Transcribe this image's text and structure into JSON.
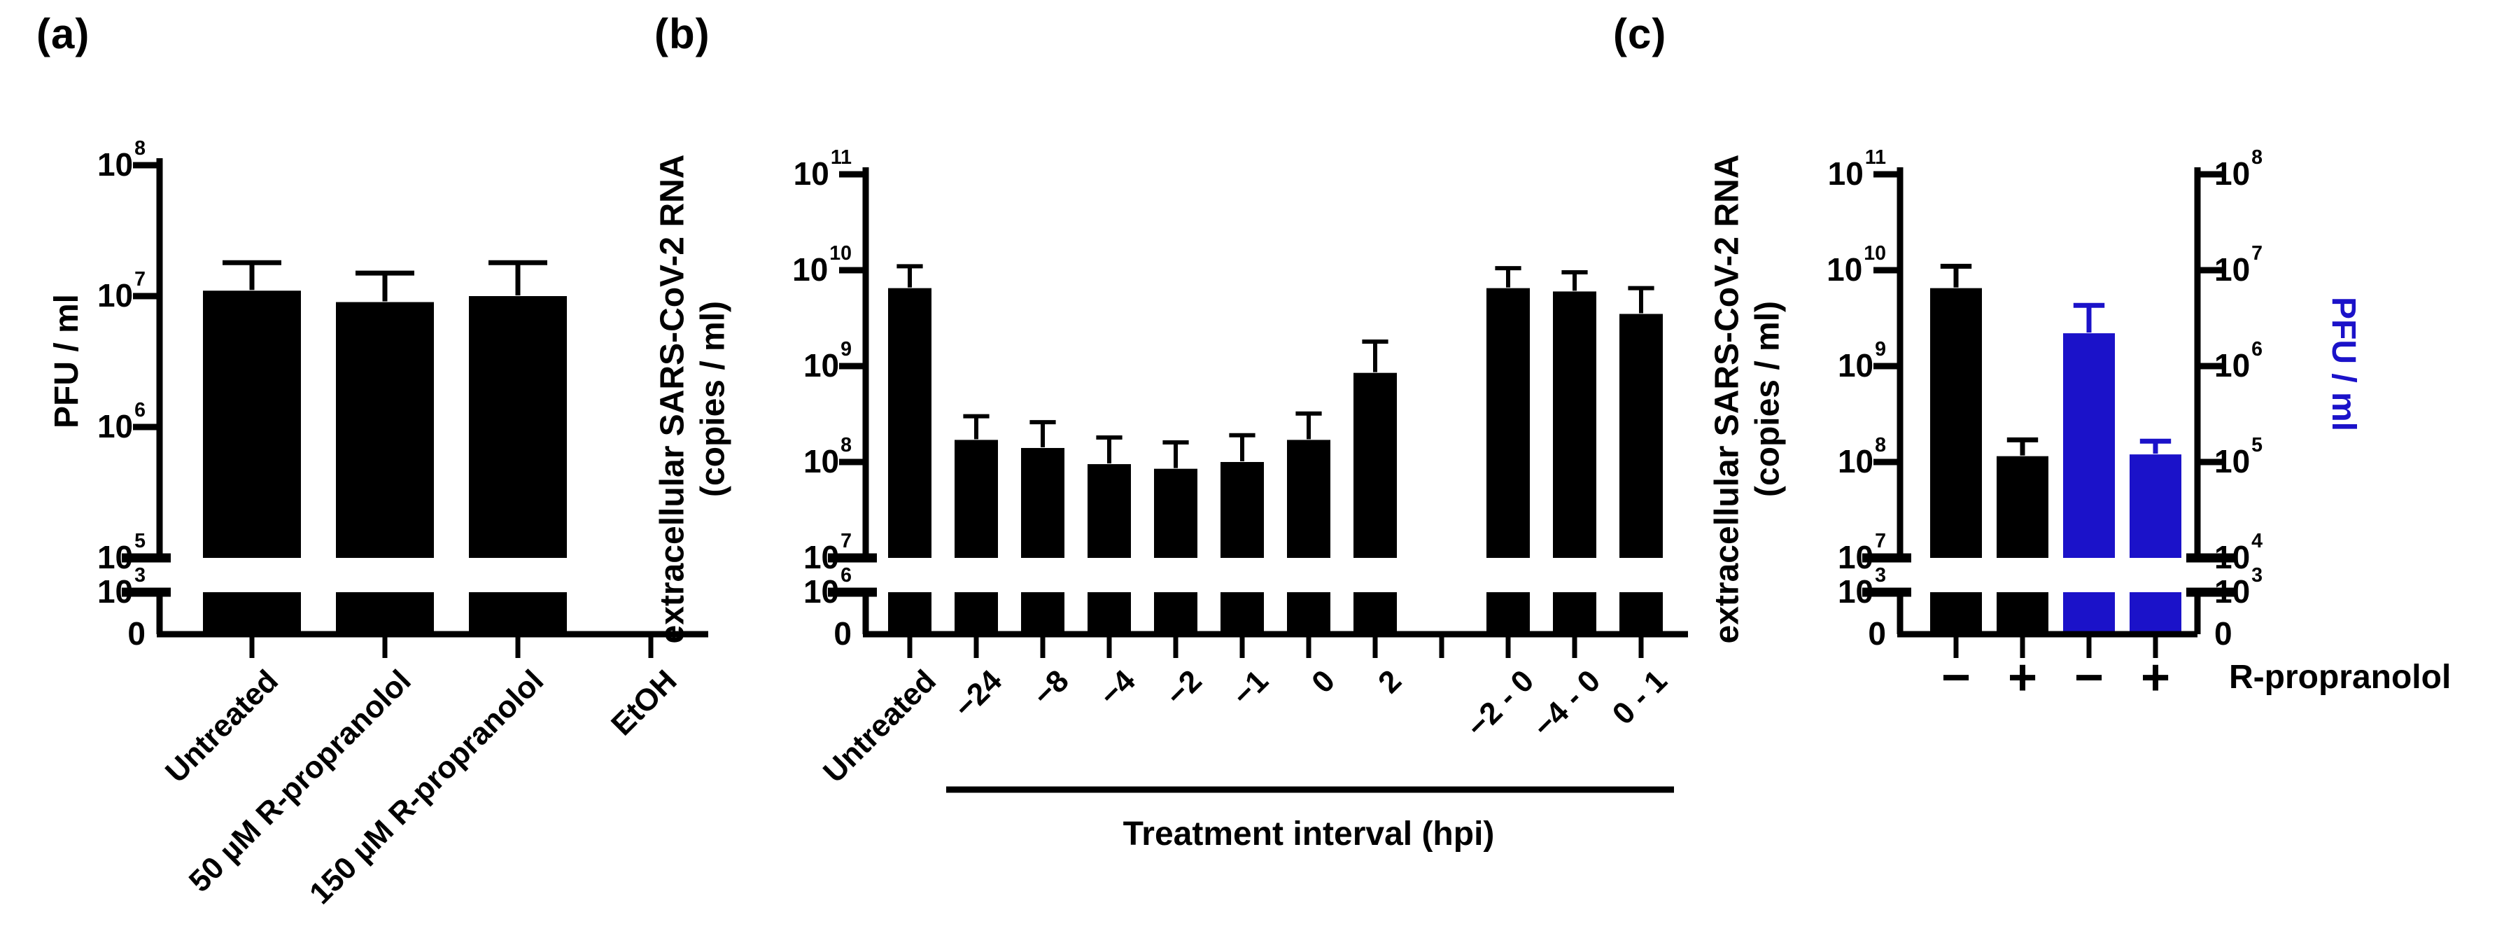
{
  "figure": {
    "background": "#ffffff",
    "bar_black": "#000000",
    "bar_blue": "#1b12c9"
  },
  "chart_data": [
    {
      "type": "bar",
      "panel_label": "(a)",
      "ylabel": "PFU / ml",
      "y_axis": {
        "scale": "log-broken",
        "upper_tick_exponents": [
          8,
          7,
          6,
          5
        ],
        "lower_tick_exponent": 3,
        "lower_base_label": "0",
        "axis_break": true
      },
      "categories": [
        "Untreated",
        "50 µM R-propranolol",
        "150 µM R-propranolol",
        "EtOH"
      ],
      "values": [
        11000000.0,
        9000000.0,
        10000000.0,
        null
      ],
      "error_tops": [
        18000000.0,
        15000000.0,
        18000000.0,
        null
      ],
      "bar_colors": [
        "#000000",
        "#000000",
        "#000000",
        "#000000"
      ]
    },
    {
      "type": "bar",
      "panel_label": "(b)",
      "ylabel": "extracellular SARS-CoV-2 RNA\n(copies / ml)",
      "xlabel": "Treatment interval (hpi)",
      "y_axis": {
        "scale": "log-broken",
        "upper_tick_exponents": [
          11,
          10,
          9,
          8,
          7
        ],
        "lower_tick_exponent": 6,
        "lower_base_label": "0",
        "axis_break": true
      },
      "categories": [
        "Untreated",
        "−24",
        "−8",
        "−4",
        "−2",
        "−1",
        "0",
        "2",
        "",
        "−2 - 0",
        "−4 - 0",
        "0 - 1"
      ],
      "values": [
        6500000000.0,
        170000000.0,
        140000000.0,
        95000000.0,
        85000000.0,
        100000000.0,
        170000000.0,
        850000000.0,
        null,
        6500000000.0,
        6000000000.0,
        3500000000.0
      ],
      "error_tops": [
        11000000000.0,
        300000000.0,
        260000000.0,
        180000000.0,
        160000000.0,
        190000000.0,
        320000000.0,
        1800000000.0,
        null,
        10500000000.0,
        9500000000.0,
        6500000000.0
      ],
      "bar_colors": [
        "#000000",
        "#000000",
        "#000000",
        "#000000",
        "#000000",
        "#000000",
        "#000000",
        "#000000",
        "#000000",
        "#000000",
        "#000000",
        "#000000"
      ],
      "bracket_label_span": [
        "−24",
        "0 - 1"
      ]
    },
    {
      "type": "bar",
      "panel_label": "(c)",
      "ylabel": "extracellular SARS-CoV-2 RNA\n(copies / ml)",
      "ylabel_right": "PFU / ml",
      "xlabel_right": "R-propranolol",
      "y_axis": {
        "scale": "log-broken",
        "upper_tick_exponents": [
          11,
          10,
          9,
          8,
          7
        ],
        "lower_tick_exponent": 3,
        "lower_base_label": "0",
        "axis_break": true
      },
      "y_axis_right": {
        "scale": "log-broken",
        "upper_tick_exponents": [
          8,
          7,
          6,
          5,
          4
        ],
        "lower_tick_exponent": 3,
        "lower_base_label": "0",
        "axis_break": true
      },
      "categories": [
        "−",
        "+",
        "−",
        "+"
      ],
      "values": [
        6500000000.0,
        115000000.0,
        2200000.0,
        120000.0
      ],
      "error_tops": [
        11000000000.0,
        170000000.0,
        4300000.0,
        165000.0
      ],
      "value_axes": [
        "left",
        "left",
        "right",
        "right"
      ],
      "bar_colors": [
        "#000000",
        "#000000",
        "#1b12c9",
        "#1b12c9"
      ],
      "series": [
        {
          "name": "extracellular SARS-CoV-2 RNA (copies / ml)",
          "axis": "left",
          "color": "#000000",
          "values": [
            6500000000.0,
            115000000.0
          ]
        },
        {
          "name": "PFU / ml",
          "axis": "right",
          "color": "#1b12c9",
          "values": [
            2200000.0,
            120000.0
          ]
        }
      ]
    }
  ]
}
